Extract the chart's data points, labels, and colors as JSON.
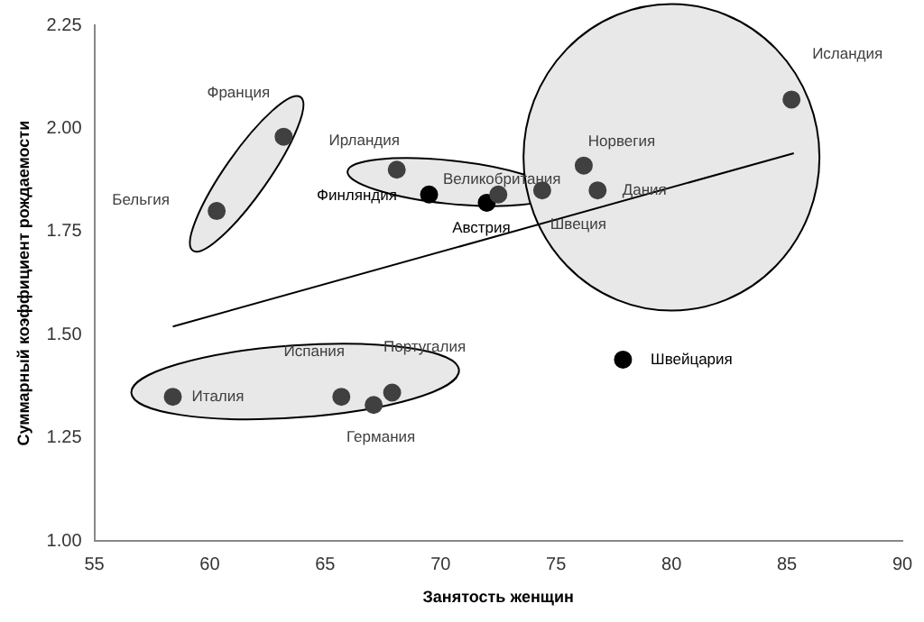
{
  "chart_data": {
    "type": "scatter",
    "xlabel": "Занятость женщин",
    "ylabel": "Суммарный коэффициент рождаемости",
    "xlim": [
      55,
      90
    ],
    "xticks": [
      55,
      60,
      65,
      70,
      75,
      80,
      85,
      90
    ],
    "ylim": [
      1.0,
      2.25
    ],
    "yticks": [
      {
        "value": 1,
        "label": "1.00"
      },
      {
        "value": 1.25,
        "label": "1.25"
      },
      {
        "value": 1.5,
        "label": "1.50"
      },
      {
        "value": 1.75,
        "label": "1.75"
      },
      {
        "value": 2,
        "label": "2.00"
      },
      {
        "value": 2.25,
        "label": "2.25"
      }
    ],
    "grid": false,
    "legend": false,
    "marker": "circle",
    "series": [
      {
        "name": "Франция",
        "color": "#404040",
        "x": [
          63.2
        ],
        "values": [
          1.98
        ]
      },
      {
        "name": "Бельгия",
        "color": "#404040",
        "x": [
          60.3
        ],
        "values": [
          1.8
        ]
      },
      {
        "name": "Ирландия",
        "color": "#404040",
        "x": [
          68.1
        ],
        "values": [
          1.9
        ]
      },
      {
        "name": "Финляндия",
        "color": "#000000",
        "x": [
          69.5
        ],
        "values": [
          1.84
        ]
      },
      {
        "name": "Великобритания",
        "color": "#404040",
        "x": [
          72.5
        ],
        "values": [
          1.84
        ]
      },
      {
        "name": "Австрия",
        "color": "#000000",
        "x": [
          72.0
        ],
        "values": [
          1.82
        ]
      },
      {
        "name": "Швеция",
        "color": "#404040",
        "x": [
          74.4
        ],
        "values": [
          1.85
        ]
      },
      {
        "name": "Норвегия",
        "color": "#404040",
        "x": [
          76.2
        ],
        "values": [
          1.91
        ]
      },
      {
        "name": "Дания",
        "color": "#404040",
        "x": [
          76.8
        ],
        "values": [
          1.85
        ]
      },
      {
        "name": "Исландия",
        "color": "#404040",
        "x": [
          85.2
        ],
        "values": [
          2.07
        ]
      },
      {
        "name": "Швейцария",
        "color": "#000000",
        "x": [
          77.9
        ],
        "values": [
          1.44
        ]
      },
      {
        "name": "Италия",
        "color": "#404040",
        "x": [
          58.4
        ],
        "values": [
          1.35
        ]
      },
      {
        "name": "Испания",
        "color": "#404040",
        "x": [
          65.7
        ],
        "values": [
          1.35
        ]
      },
      {
        "name": "Германия",
        "color": "#404040",
        "x": [
          67.1
        ],
        "values": [
          1.33
        ]
      },
      {
        "name": "Португалия",
        "color": "#404040",
        "x": [
          67.9
        ],
        "values": [
          1.36
        ]
      },
      {
        "type": "line",
        "marker": "none",
        "color": "#000000",
        "x": [
          58.4,
          85.3
        ],
        "values": [
          1.52,
          1.94
        ]
      }
    ]
  }
}
